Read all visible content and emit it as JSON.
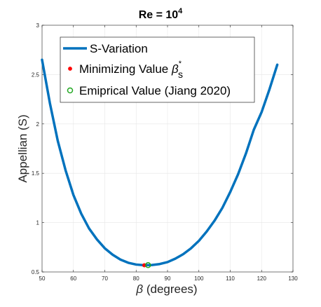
{
  "chart_data": {
    "type": "line",
    "title_base": "Re = 10",
    "title_exp": "4",
    "xlabel_symbol": "β",
    "xlabel_rest": " (degrees)",
    "ylabel": "Appellian (S)",
    "xlim": [
      50,
      130
    ],
    "ylim": [
      0.5,
      3
    ],
    "xticks": [
      50,
      60,
      70,
      80,
      90,
      100,
      110,
      120,
      130
    ],
    "yticks": [
      0.5,
      1,
      1.5,
      2,
      2.5,
      3
    ],
    "ytick_labels": [
      "0.5",
      "1",
      "1.5",
      "2",
      "2.5",
      "3"
    ],
    "grid": true,
    "legend_position": "top-left",
    "series": [
      {
        "name": "S-Variation",
        "color": "#0072BD",
        "x": [
          50,
          52.5,
          55,
          57.5,
          60,
          62.5,
          65,
          67.5,
          70,
          72.5,
          75,
          77.5,
          80,
          82.5,
          85,
          87.5,
          90,
          92.5,
          95,
          97.5,
          100,
          102.5,
          105,
          107.5,
          110,
          112.5,
          115,
          117.5,
          120,
          122.5,
          125
        ],
        "y": [
          2.65,
          2.21,
          1.83,
          1.53,
          1.28,
          1.09,
          0.94,
          0.83,
          0.74,
          0.675,
          0.625,
          0.593,
          0.575,
          0.568,
          0.57,
          0.58,
          0.6,
          0.635,
          0.68,
          0.74,
          0.815,
          0.91,
          1.02,
          1.15,
          1.31,
          1.49,
          1.7,
          1.94,
          2.12,
          2.35,
          2.6
        ]
      }
    ],
    "markers": [
      {
        "name_main": "Minimizing Value  ",
        "name_symbol": "β",
        "name_sup": "*",
        "name_sub": "s",
        "x": 82.6,
        "y": 0.568,
        "color": "#FF0000",
        "style": "asterisk"
      },
      {
        "name_main": "Emiprical Value (Jiang 2020)",
        "x": 83.8,
        "y": 0.569,
        "color": "#22A822",
        "style": "circle"
      }
    ]
  }
}
